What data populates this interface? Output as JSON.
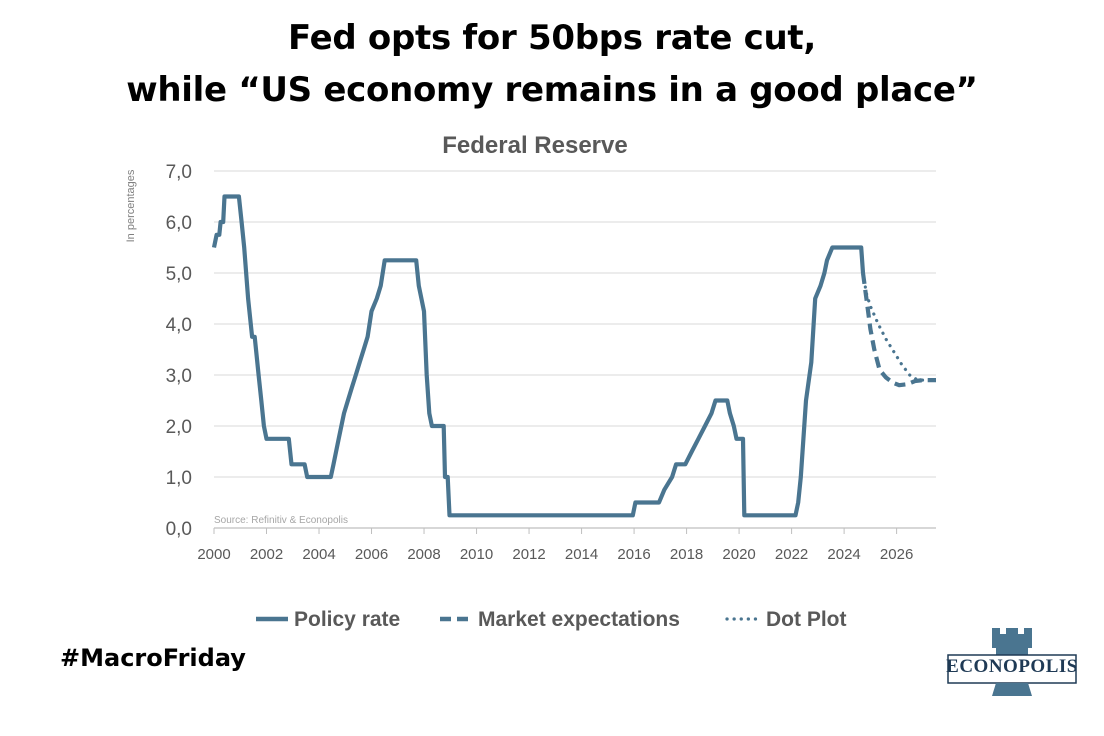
{
  "headline": {
    "line1": "Fed opts for 50bps rate cut,",
    "line2": "while “US economy remains in a good place”"
  },
  "hashtag": "#MacroFriday",
  "logo": {
    "text": "ECONOPOLIS",
    "icon": "castle-tower-icon"
  },
  "colors": {
    "series": "#4a7590",
    "grid": "#d9d9d9",
    "text": "#595959",
    "source": "#a6a6a6"
  },
  "chart_data": {
    "type": "line",
    "title": "Federal Reserve",
    "ylabel": "In percentages",
    "xlabel": "",
    "source_note": "Source: Refinitiv  & Econopolis",
    "xlim": [
      2000,
      2027.5
    ],
    "ylim": [
      0,
      7
    ],
    "grid": true,
    "legend_position": "bottom",
    "x_ticks": [
      2000,
      2002,
      2004,
      2006,
      2008,
      2010,
      2012,
      2014,
      2016,
      2018,
      2020,
      2022,
      2024,
      2026
    ],
    "y_ticks": [
      {
        "value": 0,
        "label": "0,0"
      },
      {
        "value": 1,
        "label": "1,0"
      },
      {
        "value": 2,
        "label": "2,0"
      },
      {
        "value": 3,
        "label": "3,0"
      },
      {
        "value": 4,
        "label": "4,0"
      },
      {
        "value": 5,
        "label": "5,0"
      },
      {
        "value": 6,
        "label": "6,0"
      },
      {
        "value": 7,
        "label": "7,0"
      }
    ],
    "series": [
      {
        "name": "Policy rate",
        "style": "solid",
        "points": [
          [
            2000.0,
            5.5
          ],
          [
            2000.1,
            5.75
          ],
          [
            2000.2,
            5.75
          ],
          [
            2000.25,
            6.0
          ],
          [
            2000.35,
            6.0
          ],
          [
            2000.4,
            6.5
          ],
          [
            2000.95,
            6.5
          ],
          [
            2001.05,
            6.0
          ],
          [
            2001.15,
            5.5
          ],
          [
            2001.3,
            4.5
          ],
          [
            2001.45,
            3.75
          ],
          [
            2001.55,
            3.75
          ],
          [
            2001.7,
            3.0
          ],
          [
            2001.8,
            2.5
          ],
          [
            2001.9,
            2.0
          ],
          [
            2002.0,
            1.75
          ],
          [
            2002.85,
            1.75
          ],
          [
            2002.95,
            1.25
          ],
          [
            2003.45,
            1.25
          ],
          [
            2003.55,
            1.0
          ],
          [
            2004.45,
            1.0
          ],
          [
            2004.55,
            1.25
          ],
          [
            2004.65,
            1.5
          ],
          [
            2004.75,
            1.75
          ],
          [
            2004.95,
            2.25
          ],
          [
            2005.1,
            2.5
          ],
          [
            2005.25,
            2.75
          ],
          [
            2005.4,
            3.0
          ],
          [
            2005.55,
            3.25
          ],
          [
            2005.7,
            3.5
          ],
          [
            2005.85,
            3.75
          ],
          [
            2006.0,
            4.25
          ],
          [
            2006.2,
            4.5
          ],
          [
            2006.35,
            4.75
          ],
          [
            2006.5,
            5.25
          ],
          [
            2007.7,
            5.25
          ],
          [
            2007.8,
            4.75
          ],
          [
            2007.9,
            4.5
          ],
          [
            2008.0,
            4.25
          ],
          [
            2008.1,
            3.0
          ],
          [
            2008.2,
            2.25
          ],
          [
            2008.3,
            2.0
          ],
          [
            2008.75,
            2.0
          ],
          [
            2008.8,
            1.0
          ],
          [
            2008.9,
            1.0
          ],
          [
            2008.97,
            0.25
          ],
          [
            2015.95,
            0.25
          ],
          [
            2016.05,
            0.5
          ],
          [
            2016.95,
            0.5
          ],
          [
            2017.15,
            0.75
          ],
          [
            2017.45,
            1.0
          ],
          [
            2017.6,
            1.25
          ],
          [
            2017.95,
            1.25
          ],
          [
            2018.2,
            1.5
          ],
          [
            2018.45,
            1.75
          ],
          [
            2018.7,
            2.0
          ],
          [
            2018.95,
            2.25
          ],
          [
            2019.1,
            2.5
          ],
          [
            2019.55,
            2.5
          ],
          [
            2019.65,
            2.25
          ],
          [
            2019.8,
            2.0
          ],
          [
            2019.9,
            1.75
          ],
          [
            2020.15,
            1.75
          ],
          [
            2020.2,
            0.25
          ],
          [
            2022.15,
            0.25
          ],
          [
            2022.25,
            0.5
          ],
          [
            2022.35,
            1.0
          ],
          [
            2022.45,
            1.75
          ],
          [
            2022.55,
            2.5
          ],
          [
            2022.75,
            3.25
          ],
          [
            2022.9,
            4.5
          ],
          [
            2023.1,
            4.75
          ],
          [
            2023.25,
            5.0
          ],
          [
            2023.35,
            5.25
          ],
          [
            2023.55,
            5.5
          ],
          [
            2024.65,
            5.5
          ],
          [
            2024.72,
            5.0
          ]
        ]
      },
      {
        "name": "Market expectations",
        "style": "dashed",
        "points": [
          [
            2024.72,
            5.0
          ],
          [
            2024.85,
            4.5
          ],
          [
            2025.0,
            3.9
          ],
          [
            2025.15,
            3.5
          ],
          [
            2025.35,
            3.1
          ],
          [
            2025.6,
            2.95
          ],
          [
            2025.85,
            2.85
          ],
          [
            2026.1,
            2.8
          ],
          [
            2026.4,
            2.82
          ],
          [
            2026.7,
            2.88
          ],
          [
            2027.0,
            2.9
          ],
          [
            2027.5,
            2.9
          ]
        ]
      },
      {
        "name": "Dot Plot",
        "style": "dotted",
        "points": [
          [
            2024.72,
            5.0
          ],
          [
            2024.85,
            4.6
          ],
          [
            2025.0,
            4.35
          ],
          [
            2025.3,
            4.0
          ],
          [
            2025.6,
            3.7
          ],
          [
            2025.9,
            3.45
          ],
          [
            2026.2,
            3.2
          ],
          [
            2026.5,
            3.0
          ],
          [
            2026.8,
            2.9
          ],
          [
            2027.1,
            2.9
          ],
          [
            2027.5,
            2.9
          ]
        ]
      }
    ]
  }
}
